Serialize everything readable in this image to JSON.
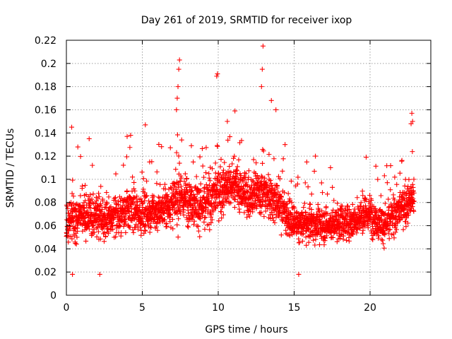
{
  "chart_data": {
    "type": "scatter",
    "title": "Day 261 of 2019, SRMTID for receiver ixop",
    "xlabel": "GPS time / hours",
    "ylabel": "SRMTID / TECUs",
    "xlim": [
      0,
      24
    ],
    "ylim": [
      0,
      0.22
    ],
    "xticks": [
      0,
      5,
      10,
      15,
      20
    ],
    "xtick_labels": [
      "0",
      "5",
      "10",
      "15",
      "20"
    ],
    "yticks": [
      0,
      0.02,
      0.04,
      0.06,
      0.08,
      0.1,
      0.12,
      0.14,
      0.16,
      0.18,
      0.2,
      0.22
    ],
    "ytick_labels": [
      "0",
      "0.02",
      "0.04",
      "0.06",
      "0.08",
      "0.1",
      "0.12",
      "0.14",
      "0.16",
      "0.18",
      "0.2",
      "0.22"
    ],
    "grid": true,
    "marker": "+",
    "color": "#ff0000",
    "series": [
      {
        "x_range": [
          0,
          22.9
        ],
        "approx_point_count": 2800,
        "envelope": [
          {
            "x": 0,
            "mean": 0.058,
            "spread": 0.02
          },
          {
            "x": 1,
            "mean": 0.07,
            "spread": 0.022
          },
          {
            "x": 2,
            "mean": 0.068,
            "spread": 0.02
          },
          {
            "x": 3,
            "mean": 0.065,
            "spread": 0.02
          },
          {
            "x": 4,
            "mean": 0.075,
            "spread": 0.022
          },
          {
            "x": 5,
            "mean": 0.07,
            "spread": 0.02
          },
          {
            "x": 6,
            "mean": 0.072,
            "spread": 0.02
          },
          {
            "x": 7,
            "mean": 0.08,
            "spread": 0.026
          },
          {
            "x": 8,
            "mean": 0.085,
            "spread": 0.025
          },
          {
            "x": 9,
            "mean": 0.075,
            "spread": 0.024
          },
          {
            "x": 10,
            "mean": 0.09,
            "spread": 0.026
          },
          {
            "x": 11,
            "mean": 0.095,
            "spread": 0.025
          },
          {
            "x": 12,
            "mean": 0.085,
            "spread": 0.022
          },
          {
            "x": 13,
            "mean": 0.09,
            "spread": 0.025
          },
          {
            "x": 14,
            "mean": 0.08,
            "spread": 0.022
          },
          {
            "x": 15,
            "mean": 0.06,
            "spread": 0.018
          },
          {
            "x": 16,
            "mean": 0.062,
            "spread": 0.018
          },
          {
            "x": 17,
            "mean": 0.06,
            "spread": 0.018
          },
          {
            "x": 18,
            "mean": 0.062,
            "spread": 0.018
          },
          {
            "x": 19,
            "mean": 0.065,
            "spread": 0.018
          },
          {
            "x": 20,
            "mean": 0.07,
            "spread": 0.02
          },
          {
            "x": 21,
            "mean": 0.06,
            "spread": 0.018
          },
          {
            "x": 22,
            "mean": 0.075,
            "spread": 0.02
          },
          {
            "x": 22.9,
            "mean": 0.085,
            "spread": 0.022
          }
        ],
        "notable_points": [
          {
            "x": 0.35,
            "y": 0.145
          },
          {
            "x": 7.45,
            "y": 0.203
          },
          {
            "x": 7.4,
            "y": 0.195
          },
          {
            "x": 7.35,
            "y": 0.18
          },
          {
            "x": 7.3,
            "y": 0.17
          },
          {
            "x": 7.25,
            "y": 0.16
          },
          {
            "x": 9.95,
            "y": 0.191
          },
          {
            "x": 9.9,
            "y": 0.189
          },
          {
            "x": 11.1,
            "y": 0.159
          },
          {
            "x": 12.95,
            "y": 0.215
          },
          {
            "x": 12.9,
            "y": 0.195
          },
          {
            "x": 12.85,
            "y": 0.18
          },
          {
            "x": 13.5,
            "y": 0.168
          },
          {
            "x": 13.8,
            "y": 0.16
          },
          {
            "x": 22.75,
            "y": 0.157
          },
          {
            "x": 22.8,
            "y": 0.15
          },
          {
            "x": 22.7,
            "y": 0.148
          },
          {
            "x": 2.2,
            "y": 0.018
          },
          {
            "x": 0.4,
            "y": 0.018
          },
          {
            "x": 15.3,
            "y": 0.018
          },
          {
            "x": 1.5,
            "y": 0.135
          },
          {
            "x": 4.0,
            "y": 0.137
          },
          {
            "x": 5.2,
            "y": 0.147
          },
          {
            "x": 10.6,
            "y": 0.15
          },
          {
            "x": 14.4,
            "y": 0.13
          },
          {
            "x": 16.4,
            "y": 0.12
          }
        ]
      }
    ]
  }
}
